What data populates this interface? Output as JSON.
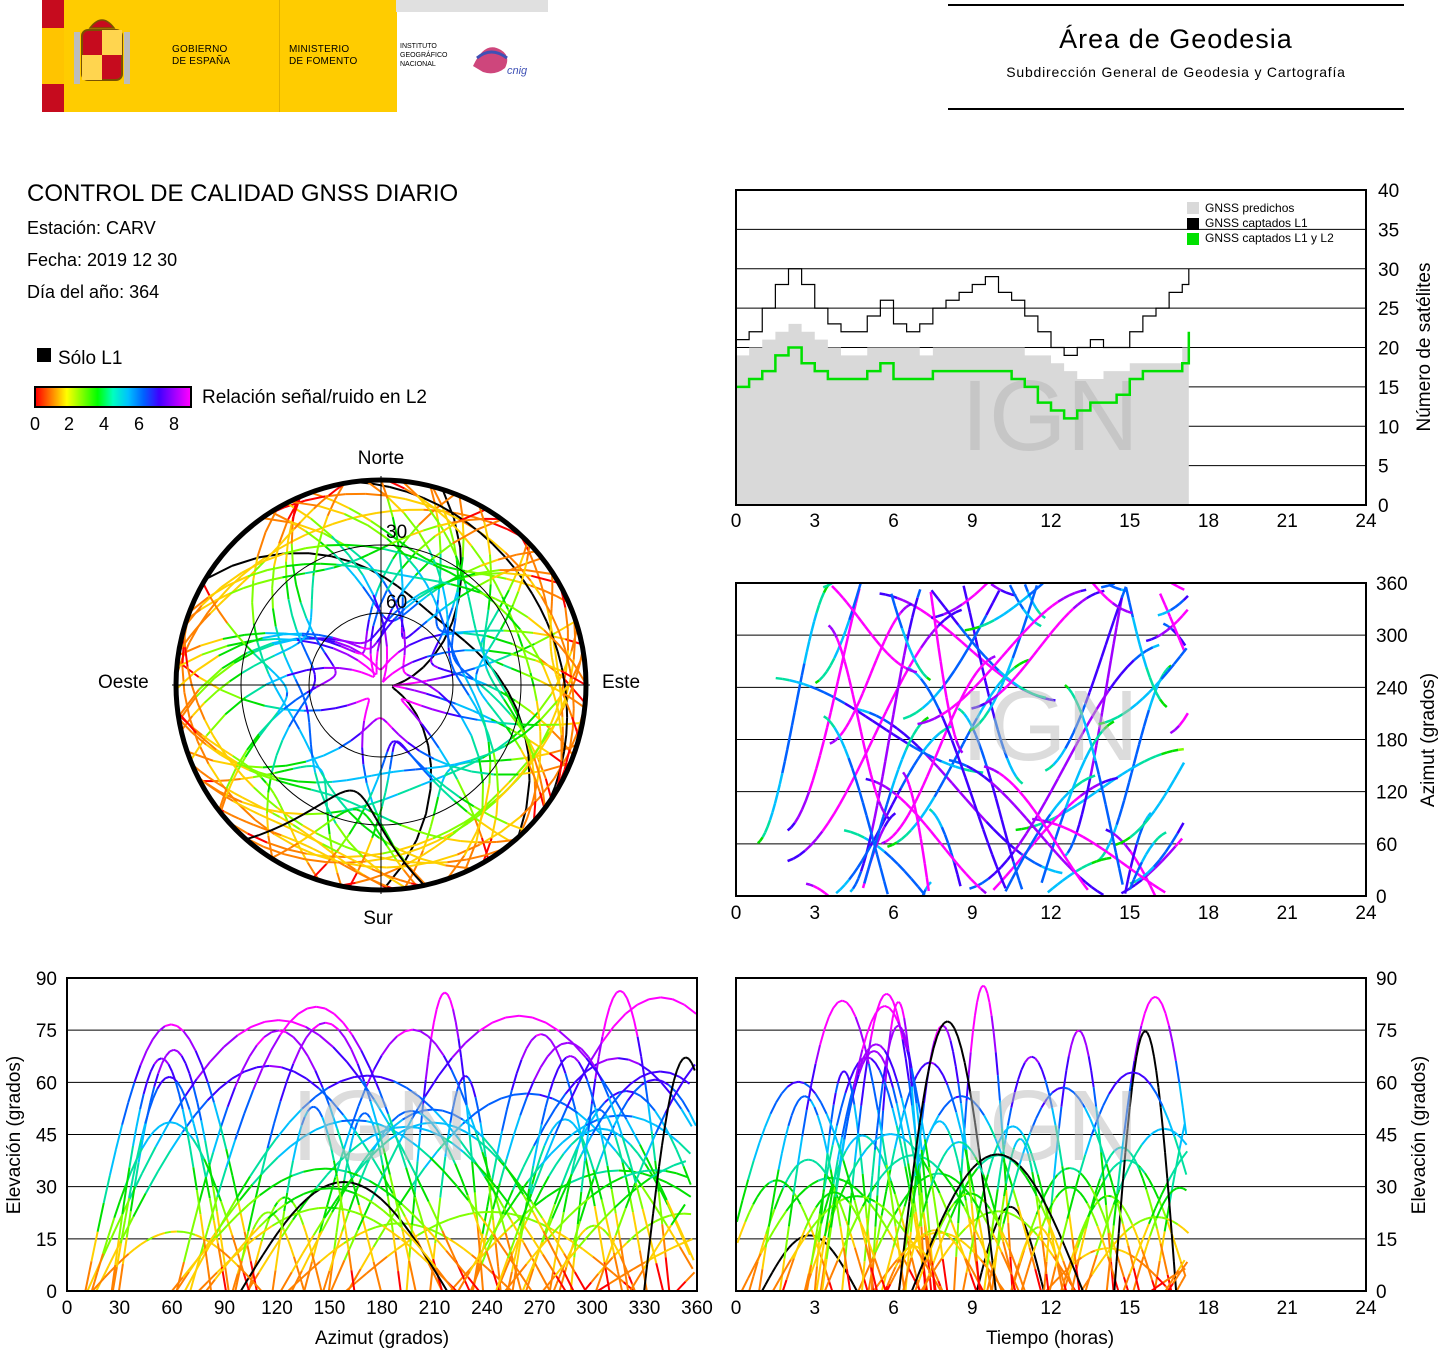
{
  "header": {
    "gov_line1": "GOBIERNO",
    "gov_line2": "DE ESPAÑA",
    "min_line1": "MINISTERIO",
    "min_line2": "DE FOMENTO",
    "inst_line1": "INSTITUTO",
    "inst_line2": "GEOGRÁFICO",
    "inst_line3": "NACIONAL",
    "logo_text": "cnig",
    "area_title": "Área de Geodesia",
    "area_subtitle": "Subdirección General de Geodesia y Cartografía"
  },
  "report": {
    "title": "CONTROL DE CALIDAD GNSS DIARIO",
    "station": "Estación: CARV",
    "date": "Fecha: 2019 12 30",
    "doy": "Día del año: 364",
    "legend_l1": "Sólo L1",
    "legend_snr": "Relación señal/ruido en L2",
    "snr_ticks": [
      "0",
      "2",
      "4",
      "6",
      "8"
    ]
  },
  "watermark": "IGN",
  "colors": {
    "predicted": "#d9d9d9",
    "l1": "#000000",
    "l1l2": "#00e000",
    "sky_border": "#000000"
  },
  "chart_data": [
    {
      "id": "satellites",
      "type": "area",
      "xlabel": "",
      "ylabel": "Número de satélites",
      "xlim": [
        0,
        24
      ],
      "ylim": [
        0,
        40
      ],
      "xticks": [
        "0",
        "3",
        "6",
        "9",
        "12",
        "15",
        "18",
        "21",
        "24"
      ],
      "yticks": [
        "0",
        "5",
        "10",
        "15",
        "20",
        "25",
        "30",
        "35",
        "40"
      ],
      "legend": [
        "GNSS predichos",
        "GNSS captados L1",
        "GNSS captados L1 y L2"
      ],
      "legend_position": "top-right",
      "x": [
        0,
        0.5,
        1,
        1.5,
        2,
        2.5,
        3,
        3.5,
        4,
        4.5,
        5,
        5.5,
        6,
        6.5,
        7,
        7.5,
        8,
        8.5,
        9,
        9.5,
        10,
        10.5,
        11,
        11.5,
        12,
        12.5,
        13,
        13.5,
        14,
        14.5,
        15,
        15.5,
        16,
        16.5,
        17,
        17.25
      ],
      "series": [
        {
          "name": "GNSS predichos",
          "values": [
            19,
            20,
            21,
            22,
            23,
            22,
            21,
            20,
            19,
            19,
            20,
            20,
            20,
            20,
            19,
            20,
            20,
            20,
            20,
            20,
            20,
            20,
            19,
            19,
            18,
            17,
            16,
            16,
            17,
            17,
            18,
            18,
            18,
            18,
            20,
            22
          ]
        },
        {
          "name": "GNSS captados L1",
          "values": [
            21,
            22,
            25,
            28,
            30,
            28,
            25,
            23,
            22,
            22,
            24,
            26,
            23,
            22,
            23,
            25,
            26,
            27,
            28,
            29,
            27,
            26,
            24,
            22,
            20,
            19,
            20,
            21,
            20,
            20,
            22,
            24,
            25,
            27,
            28,
            30
          ]
        },
        {
          "name": "GNSS captados L1 y L2",
          "values": [
            15,
            16,
            17,
            19,
            20,
            18,
            17,
            16,
            16,
            16,
            17,
            18,
            16,
            16,
            16,
            17,
            17,
            17,
            17,
            17,
            17,
            16,
            15,
            13,
            12,
            11,
            12,
            13,
            13,
            14,
            16,
            17,
            17,
            17,
            18,
            22
          ]
        }
      ]
    },
    {
      "id": "sky",
      "type": "scatter",
      "title": "",
      "directions": {
        "north": "Norte",
        "south": "Sur",
        "east": "Este",
        "west": "Oeste"
      },
      "rings": [
        "30",
        "60"
      ]
    },
    {
      "id": "azimuth_time",
      "type": "scatter",
      "xlabel": "",
      "ylabel": "Azimut (grados)",
      "xlim": [
        0,
        24
      ],
      "ylim": [
        0,
        360
      ],
      "xticks": [
        "0",
        "3",
        "6",
        "9",
        "12",
        "15",
        "18",
        "21",
        "24"
      ],
      "yticks": [
        "0",
        "60",
        "120",
        "180",
        "240",
        "300",
        "360"
      ]
    },
    {
      "id": "elevation_azimuth",
      "type": "scatter",
      "xlabel": "Azimut (grados)",
      "ylabel": "Elevación (grados)",
      "xlim": [
        0,
        360
      ],
      "ylim": [
        0,
        90
      ],
      "xticks": [
        "0",
        "30",
        "60",
        "90",
        "120",
        "150",
        "180",
        "210",
        "240",
        "270",
        "300",
        "330",
        "360"
      ],
      "yticks": [
        "0",
        "15",
        "30",
        "45",
        "60",
        "75",
        "90"
      ]
    },
    {
      "id": "elevation_time",
      "type": "scatter",
      "xlabel": "Tiempo (horas)",
      "ylabel": "Elevación (grados)",
      "xlim": [
        0,
        24
      ],
      "ylim": [
        0,
        90
      ],
      "xticks": [
        "0",
        "3",
        "6",
        "9",
        "12",
        "15",
        "18",
        "21",
        "24"
      ],
      "yticks": [
        "0",
        "15",
        "30",
        "45",
        "60",
        "75",
        "90"
      ]
    }
  ]
}
